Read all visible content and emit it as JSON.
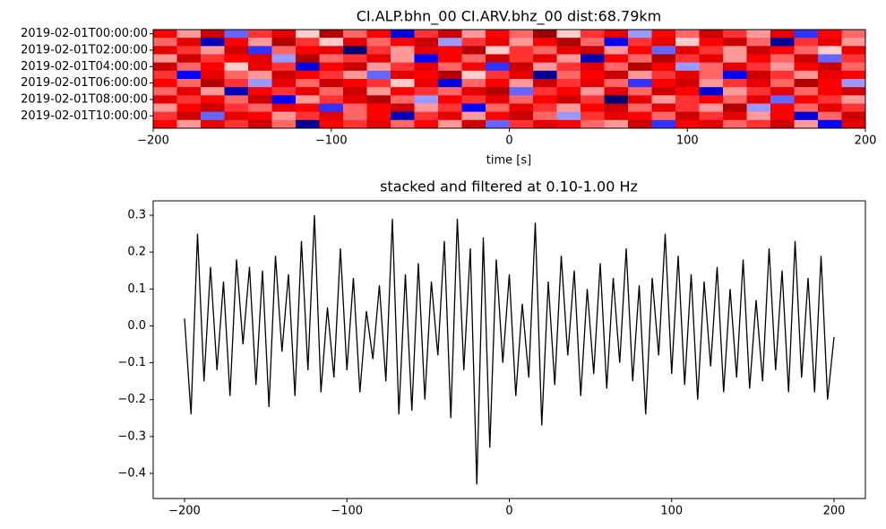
{
  "chart_data": [
    {
      "type": "heatmap",
      "title": "CI.ALP.bhn_00 CI.ARV.bhz_00  dist:68.79km",
      "xlabel": "time [s]",
      "xlim": [
        -200,
        200
      ],
      "xticks": [
        {
          "value": -200,
          "label": "−200"
        },
        {
          "value": -100,
          "label": "−100"
        },
        0,
        100,
        200
      ],
      "rows": [
        "2019-02-01T00:00:00",
        null,
        "2019-02-01T02:00:00",
        null,
        "2019-02-01T04:00:00",
        null,
        "2019-02-01T06:00:00",
        null,
        "2019-02-01T08:00:00",
        null,
        "2019-02-01T10:00:00",
        null
      ],
      "colormap": "seismic",
      "z": [
        [
          0.5,
          0.2,
          0.7,
          -0.3,
          0.4,
          0.6,
          0.1,
          0.8,
          0.3,
          0.5,
          -0.6,
          0.4,
          0.7,
          0.2,
          0.5,
          0.3,
          0.9,
          0.1,
          0.4,
          0.6,
          -0.2,
          0.5,
          0.3,
          0.7,
          0.4,
          0.2,
          0.6,
          -0.4,
          0.5,
          0.3
        ],
        [
          0.3,
          0.6,
          -0.7,
          0.5,
          0.2,
          0.8,
          0.4,
          0.1,
          0.6,
          0.3,
          0.5,
          0.7,
          -0.2,
          0.4,
          0.6,
          0.2,
          0.5,
          0.8,
          0.3,
          -0.5,
          0.4,
          0.6,
          0.1,
          0.5,
          0.7,
          0.3,
          -0.8,
          0.4,
          0.6,
          0.2
        ],
        [
          0.6,
          0.4,
          0.2,
          0.7,
          -0.4,
          0.3,
          0.5,
          0.6,
          -0.9,
          0.4,
          0.2,
          0.6,
          0.5,
          0.8,
          0.1,
          0.4,
          0.3,
          0.6,
          0.7,
          0.2,
          0.5,
          -0.3,
          0.6,
          0.4,
          0.2,
          0.7,
          0.5,
          0.3,
          0.1,
          0.6
        ],
        [
          0.2,
          0.7,
          0.4,
          0.5,
          0.6,
          -0.2,
          0.8,
          0.3,
          0.4,
          0.6,
          0.2,
          -0.5,
          0.5,
          0.3,
          0.7,
          0.4,
          0.6,
          0.2,
          -0.7,
          0.5,
          0.3,
          0.8,
          0.4,
          0.6,
          0.2,
          0.5,
          0.3,
          0.7,
          -0.3,
          0.4
        ],
        [
          0.7,
          0.3,
          0.5,
          0.1,
          0.6,
          0.4,
          -0.6,
          0.5,
          0.7,
          0.2,
          0.4,
          0.6,
          0.3,
          0.5,
          -0.4,
          0.7,
          0.2,
          0.4,
          0.6,
          0.3,
          0.8,
          0.5,
          -0.2,
          0.3,
          0.6,
          0.4,
          0.2,
          0.5,
          0.7,
          0.3
        ],
        [
          0.4,
          -0.5,
          0.6,
          0.3,
          0.2,
          0.7,
          0.5,
          0.4,
          0.2,
          -0.3,
          0.6,
          0.5,
          0.8,
          0.1,
          0.4,
          0.6,
          -0.8,
          0.3,
          0.5,
          0.7,
          0.2,
          0.4,
          0.6,
          0.3,
          -0.5,
          0.7,
          0.4,
          0.2,
          0.6,
          0.5
        ],
        [
          0.5,
          0.3,
          0.8,
          0.4,
          -0.2,
          0.6,
          0.3,
          0.7,
          0.5,
          0.4,
          0.1,
          0.6,
          -0.6,
          0.3,
          0.5,
          0.2,
          0.7,
          0.4,
          0.6,
          0.3,
          -0.4,
          0.5,
          0.7,
          0.2,
          0.4,
          0.6,
          0.3,
          0.8,
          0.5,
          -0.2
        ],
        [
          0.3,
          0.6,
          0.2,
          -0.7,
          0.5,
          0.4,
          0.6,
          0.3,
          0.7,
          0.2,
          0.5,
          0.4,
          0.3,
          0.6,
          0.8,
          -0.3,
          0.4,
          0.5,
          0.2,
          0.6,
          0.3,
          0.7,
          0.5,
          -0.6,
          0.2,
          0.4,
          0.6,
          0.3,
          0.5,
          0.7
        ],
        [
          0.6,
          0.4,
          0.5,
          0.3,
          0.7,
          -0.5,
          0.2,
          0.4,
          0.6,
          0.8,
          0.3,
          -0.2,
          0.5,
          0.4,
          0.6,
          0.3,
          0.5,
          0.7,
          0.4,
          -0.9,
          0.6,
          0.2,
          0.4,
          0.5,
          0.3,
          0.6,
          -0.3,
          0.5,
          0.4,
          0.2
        ],
        [
          0.2,
          0.5,
          0.7,
          0.4,
          0.3,
          0.6,
          0.5,
          -0.4,
          0.3,
          0.5,
          0.7,
          0.2,
          0.4,
          -0.5,
          0.3,
          0.6,
          0.4,
          0.2,
          0.5,
          0.7,
          0.3,
          0.6,
          0.4,
          0.2,
          0.8,
          -0.2,
          0.5,
          0.3,
          0.6,
          0.4
        ],
        [
          0.4,
          0.7,
          -0.3,
          0.6,
          0.5,
          0.2,
          0.4,
          0.6,
          0.3,
          0.5,
          -0.7,
          0.4,
          0.6,
          0.2,
          0.5,
          0.7,
          0.3,
          -0.2,
          0.4,
          0.6,
          0.5,
          0.3,
          0.7,
          0.4,
          0.6,
          0.2,
          0.5,
          -0.6,
          0.3,
          0.7
        ],
        [
          0.5,
          0.2,
          0.6,
          0.4,
          0.7,
          0.3,
          -0.8,
          0.5,
          0.4,
          0.6,
          0.3,
          0.5,
          0.2,
          0.7,
          -0.3,
          0.4,
          0.6,
          0.5,
          0.3,
          0.2,
          0.7,
          -0.4,
          0.5,
          0.6,
          0.3,
          0.4,
          0.7,
          0.2,
          -0.5,
          0.6
        ]
      ]
    },
    {
      "type": "line",
      "title": "stacked and filtered at 0.10-1.00 Hz",
      "color": "#000000",
      "xlim": [
        -219.3,
        219.3
      ],
      "xticks": [
        {
          "value": -200,
          "label": "−200"
        },
        {
          "value": -100,
          "label": "−100"
        },
        0,
        100,
        200
      ],
      "ylim": [
        -0.468,
        0.339
      ],
      "yticks": [
        {
          "value": -0.4,
          "label": "−0.4"
        },
        {
          "value": -0.3,
          "label": "−0.3"
        },
        {
          "value": -0.2,
          "label": "−0.2"
        },
        {
          "value": -0.1,
          "label": "−0.1"
        },
        {
          "value": 0,
          "label": "0.0"
        },
        0.1,
        0.2,
        0.3
      ],
      "x": [
        -200,
        -196,
        -192,
        -188,
        -184,
        -180,
        -176,
        -172,
        -168,
        -164,
        -160,
        -156,
        -152,
        -148,
        -144,
        -140,
        -136,
        -132,
        -128,
        -124,
        -120,
        -116,
        -112,
        -108,
        -104,
        -100,
        -96,
        -92,
        -88,
        -84,
        -80,
        -76,
        -72,
        -68,
        -64,
        -60,
        -56,
        -52,
        -48,
        -44,
        -40,
        -36,
        -32,
        -28,
        -24,
        -20,
        -16,
        -12,
        -8,
        -4,
        0,
        4,
        8,
        12,
        16,
        20,
        24,
        28,
        32,
        36,
        40,
        44,
        48,
        52,
        56,
        60,
        64,
        68,
        72,
        76,
        80,
        84,
        88,
        92,
        96,
        100,
        104,
        108,
        112,
        116,
        120,
        124,
        128,
        132,
        136,
        140,
        144,
        148,
        152,
        156,
        160,
        164,
        168,
        172,
        176,
        180,
        184,
        188,
        192,
        196,
        200
      ],
      "values": [
        0.02,
        -0.24,
        0.25,
        -0.15,
        0.16,
        -0.12,
        0.12,
        -0.19,
        0.18,
        -0.05,
        0.16,
        -0.16,
        0.15,
        -0.22,
        0.19,
        -0.07,
        0.14,
        -0.19,
        0.23,
        -0.12,
        0.3,
        -0.18,
        0.05,
        -0.14,
        0.21,
        -0.12,
        0.13,
        -0.18,
        0.04,
        -0.09,
        0.11,
        -0.15,
        0.29,
        -0.24,
        0.14,
        -0.23,
        0.17,
        -0.2,
        0.12,
        -0.08,
        0.23,
        -0.25,
        0.29,
        -0.12,
        0.21,
        -0.43,
        0.24,
        -0.33,
        0.18,
        -0.1,
        0.14,
        -0.19,
        0.06,
        -0.14,
        0.28,
        -0.27,
        0.12,
        -0.16,
        0.19,
        -0.08,
        0.15,
        -0.19,
        0.1,
        -0.13,
        0.17,
        -0.17,
        0.13,
        -0.1,
        0.21,
        -0.15,
        0.11,
        -0.24,
        0.13,
        -0.08,
        0.25,
        -0.13,
        0.19,
        -0.16,
        0.14,
        -0.2,
        0.12,
        -0.11,
        0.16,
        -0.18,
        0.1,
        -0.14,
        0.18,
        -0.17,
        0.07,
        -0.15,
        0.21,
        -0.12,
        0.15,
        -0.18,
        0.23,
        -0.14,
        0.13,
        -0.18,
        0.19,
        -0.2,
        -0.03
      ]
    }
  ]
}
